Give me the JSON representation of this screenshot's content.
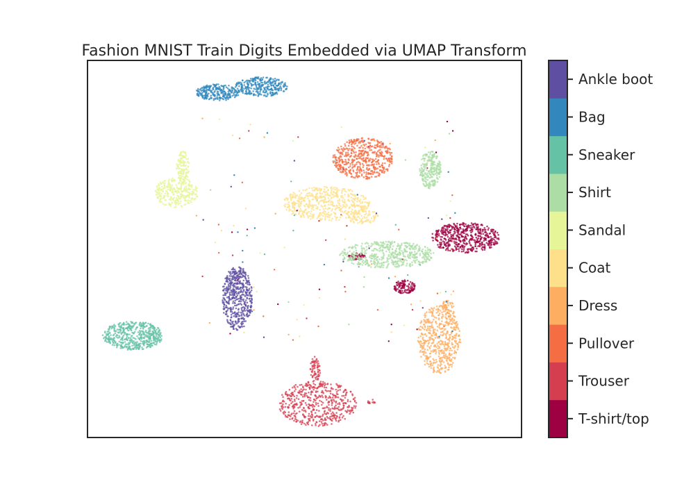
{
  "chart_data": {
    "type": "scatter",
    "title": "Fashion MNIST Train Digits Embedded via UMAP Transform",
    "xlabel": "",
    "ylabel": "",
    "axes_ticks": "none",
    "grid": false,
    "xlim": [
      0,
      100
    ],
    "ylim": [
      0,
      100
    ],
    "colorbar": {
      "position": "right",
      "labels": [
        "T-shirt/top",
        "Trouser",
        "Pullover",
        "Dress",
        "Coat",
        "Sandal",
        "Shirt",
        "Sneaker",
        "Bag",
        "Ankle boot"
      ]
    },
    "series": [
      {
        "name": "T-shirt/top",
        "color": "#9e0142",
        "clusters": [
          {
            "cx": 87,
            "cy": 53,
            "rx": 8,
            "ry": 4,
            "n": 520
          },
          {
            "cx": 73,
            "cy": 40,
            "rx": 2.5,
            "ry": 1.8,
            "n": 120
          },
          {
            "cx": 62,
            "cy": 48,
            "rx": 2,
            "ry": 0.9,
            "n": 50
          }
        ]
      },
      {
        "name": "Trouser",
        "color": "#d53e4f",
        "clusters": [
          {
            "cx": 53,
            "cy": 9,
            "rx": 9,
            "ry": 6,
            "n": 520
          },
          {
            "cx": 52.5,
            "cy": 18,
            "rx": 1.2,
            "ry": 3.5,
            "n": 70
          },
          {
            "cx": 65.5,
            "cy": 9.5,
            "rx": 1,
            "ry": 0.6,
            "n": 14
          }
        ]
      },
      {
        "name": "Pullover",
        "color": "#f46d43",
        "clusters": [
          {
            "cx": 63.5,
            "cy": 74,
            "rx": 7,
            "ry": 5.5,
            "n": 520
          }
        ]
      },
      {
        "name": "Dress",
        "color": "#fdae61",
        "clusters": [
          {
            "cx": 81,
            "cy": 26,
            "rx": 5,
            "ry": 9,
            "n": 520
          },
          {
            "cx": 83,
            "cy": 34,
            "rx": 1.5,
            "ry": 2.5,
            "n": 50
          }
        ]
      },
      {
        "name": "Coat",
        "color": "#fee08b",
        "clusters": [
          {
            "cx": 55,
            "cy": 62,
            "rx": 10,
            "ry": 4.5,
            "n": 520
          },
          {
            "cx": 63.5,
            "cy": 58.5,
            "rx": 3.5,
            "ry": 2,
            "n": 90
          }
        ]
      },
      {
        "name": "Sandal",
        "color": "#e6f598",
        "clusters": [
          {
            "cx": 20.5,
            "cy": 65,
            "rx": 5,
            "ry": 4,
            "n": 300
          },
          {
            "cx": 22,
            "cy": 72,
            "rx": 1.5,
            "ry": 4,
            "n": 120
          }
        ]
      },
      {
        "name": "Shirt",
        "color": "#abdda4",
        "clusters": [
          {
            "cx": 69,
            "cy": 48.5,
            "rx": 11,
            "ry": 3.5,
            "n": 520
          },
          {
            "cx": 79,
            "cy": 71,
            "rx": 2.5,
            "ry": 5,
            "n": 250
          }
        ]
      },
      {
        "name": "Sneaker",
        "color": "#66c2a5",
        "clusters": [
          {
            "cx": 10.5,
            "cy": 27,
            "rx": 7,
            "ry": 3.8,
            "n": 520
          }
        ]
      },
      {
        "name": "Bag",
        "color": "#3288bd",
        "clusters": [
          {
            "cx": 30,
            "cy": 91.5,
            "rx": 5,
            "ry": 2.2,
            "n": 260
          },
          {
            "cx": 40,
            "cy": 93,
            "rx": 6,
            "ry": 2.6,
            "n": 320
          }
        ]
      },
      {
        "name": "Ankle boot",
        "color": "#5e4fa2",
        "clusters": [
          {
            "cx": 34.5,
            "cy": 37,
            "rx": 3.5,
            "ry": 8.5,
            "n": 520
          }
        ]
      }
    ]
  }
}
